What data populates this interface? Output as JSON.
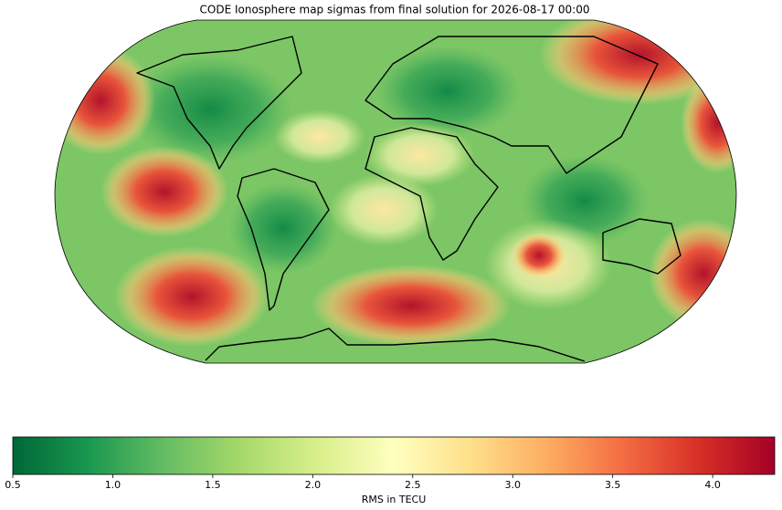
{
  "title": "CODE Ionosphere map sigmas from final solution for 2026-08-17 00:00",
  "colorbar": {
    "label": "RMS in TECU",
    "range": [
      0.5,
      4.31
    ],
    "ticks": [
      0.5,
      {
        "value": 1.0,
        "label": "1.0"
      },
      1.5,
      {
        "value": 2.0,
        "label": "2.0"
      },
      2.5,
      {
        "value": 3.0,
        "label": "3.0"
      },
      3.5,
      {
        "value": 4.0,
        "label": "4.0"
      }
    ],
    "colors": [
      "#006837",
      "#1a9850",
      "#66bd63",
      "#a6d96a",
      "#d9ef8b",
      "#ffffbf",
      "#fee08b",
      "#fdae61",
      "#f46d43",
      "#d73027",
      "#a50026"
    ]
  }
}
